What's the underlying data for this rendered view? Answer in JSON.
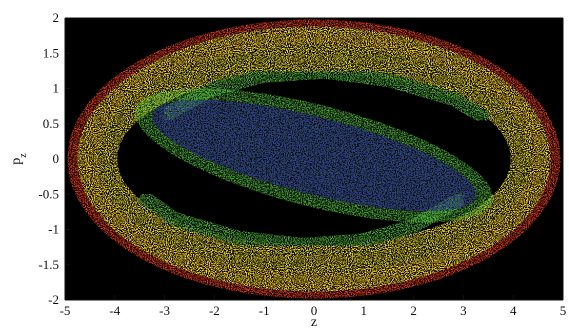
{
  "chart_data": {
    "type": "scatter",
    "title": "",
    "xlabel": "z",
    "ylabel": "p_z",
    "xlim": [
      -5,
      5
    ],
    "ylim": [
      -2,
      2
    ],
    "x_ticks": [
      -5,
      -4,
      -3,
      -2,
      -1,
      0,
      1,
      2,
      3,
      4,
      5
    ],
    "y_ticks": [
      -2,
      -1.5,
      -1,
      -0.5,
      0,
      0.5,
      1,
      1.5,
      2
    ],
    "x_tick_labels": [
      "-5",
      "-4",
      "-3",
      "-2",
      "-1",
      "0",
      "1",
      "2",
      "3",
      "4",
      "5"
    ],
    "y_tick_labels": [
      "-2",
      "-1.5",
      "-1",
      "-0.5",
      "0",
      "0.5",
      "1",
      "1.5",
      "2"
    ],
    "background_color": "#000000",
    "grid": false,
    "regions": [
      {
        "label": "outer-ring-red",
        "color": "#e83a1f",
        "shape": "ring",
        "inner_radius": [
          4.35,
          1.62
        ],
        "outer_radius": [
          4.95,
          1.98
        ]
      },
      {
        "label": "yellow-band",
        "color": "#ecd92a",
        "shape": "ring",
        "inner_radius": [
          3.95,
          1.22
        ],
        "outer_radius": [
          4.75,
          1.88
        ]
      },
      {
        "label": "green-rim",
        "color": "#4fb23a",
        "shape": "tilted-ellipse",
        "center": [
          0.0,
          0.05
        ],
        "radii": [
          3.7,
          0.72
        ],
        "tilt_slope": -0.18
      },
      {
        "label": "blue-core",
        "color": "#2e2ea8",
        "shape": "tilted-ellipse",
        "center": [
          0.0,
          0.05
        ],
        "radii": [
          3.35,
          0.55
        ],
        "tilt_slope": -0.18
      }
    ],
    "arms": [
      {
        "label": "upper-arm",
        "color": "#4fb23a",
        "points": [
          [
            -3.0,
            0.62
          ],
          [
            -2.0,
            1.0
          ],
          [
            -1.0,
            1.18
          ],
          [
            0.2,
            1.24
          ],
          [
            1.5,
            1.12
          ],
          [
            2.8,
            0.85
          ],
          [
            3.5,
            0.55
          ]
        ]
      },
      {
        "label": "lower-arm",
        "color": "#4fb23a",
        "points": [
          [
            3.0,
            -0.55
          ],
          [
            2.0,
            -0.95
          ],
          [
            1.0,
            -1.15
          ],
          [
            -0.2,
            -1.22
          ],
          [
            -1.5,
            -1.12
          ],
          [
            -2.8,
            -0.85
          ],
          [
            -3.5,
            -0.5
          ]
        ]
      }
    ]
  }
}
